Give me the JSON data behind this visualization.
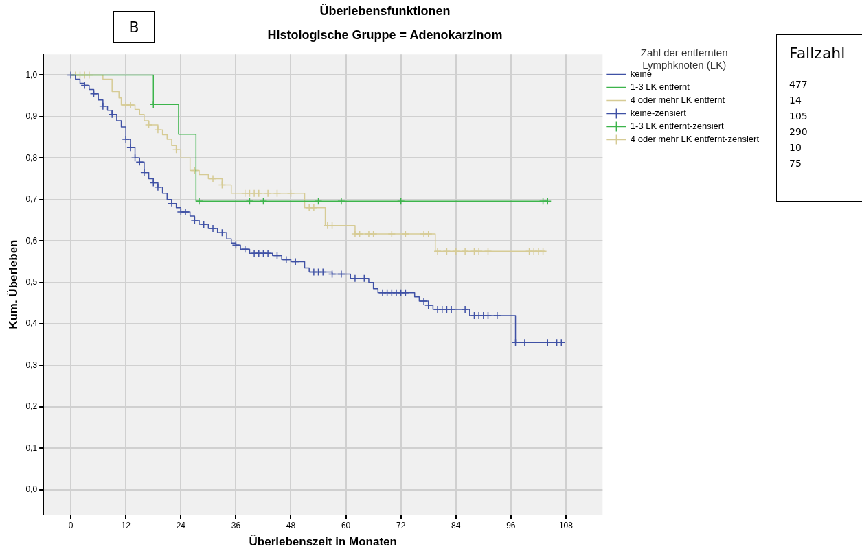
{
  "chart_data": {
    "type": "step",
    "title": "Überlebensfunktionen",
    "subtitle": "Histologische Gruppe = Adenokarzinom",
    "xlabel": "Überlebenszeit in Monaten",
    "ylabel": "Kum. Überleben",
    "legend_title": "Zahl der entfernten Lymphknoten (LK)",
    "legend": "right",
    "grid": true,
    "xlim": [
      -6,
      116
    ],
    "xticks": [
      0,
      12,
      24,
      36,
      48,
      60,
      72,
      84,
      96,
      108
    ],
    "ylim": [
      -0.06,
      1.05
    ],
    "yticks": [
      {
        "value": 0,
        "label": "0,0"
      },
      {
        "value": 0.1,
        "label": "0,1"
      },
      {
        "value": 0.2,
        "label": "0,2"
      },
      {
        "value": 0.3,
        "label": "0,3"
      },
      {
        "value": 0.4,
        "label": "0,4"
      },
      {
        "value": 0.5,
        "label": "0,5"
      },
      {
        "value": 0.6,
        "label": "0,6"
      },
      {
        "value": 0.7,
        "label": "0,7"
      },
      {
        "value": 0.8,
        "label": "0,8"
      },
      {
        "value": 0.9,
        "label": "0,9"
      },
      {
        "value": 1,
        "label": "1,0"
      }
    ],
    "annotations": [
      "B",
      "Fallzahl",
      "477",
      "14",
      "105",
      "290",
      "10",
      "75"
    ],
    "series": [
      {
        "name": "keine",
        "marker": "none",
        "color": "#3f51a5",
        "x": [
          0,
          1,
          2,
          3,
          4,
          5,
          6,
          7,
          8,
          9,
          10,
          11,
          12,
          13,
          14,
          15,
          16,
          17,
          18,
          19,
          20,
          21,
          22,
          23,
          24,
          26,
          27,
          28,
          30,
          32,
          34,
          35,
          36,
          37,
          39,
          44,
          46,
          48,
          51,
          52,
          57,
          61,
          65,
          66,
          67,
          75,
          76,
          78,
          79,
          87,
          97,
          107
        ],
        "values": [
          1,
          0.99,
          0.98,
          0.975,
          0.965,
          0.955,
          0.94,
          0.925,
          0.915,
          0.905,
          0.89,
          0.875,
          0.845,
          0.825,
          0.8,
          0.79,
          0.765,
          0.75,
          0.74,
          0.73,
          0.715,
          0.7,
          0.69,
          0.68,
          0.67,
          0.66,
          0.65,
          0.64,
          0.63,
          0.62,
          0.605,
          0.595,
          0.59,
          0.58,
          0.57,
          0.565,
          0.555,
          0.55,
          0.535,
          0.525,
          0.52,
          0.51,
          0.5,
          0.485,
          0.475,
          0.465,
          0.455,
          0.445,
          0.435,
          0.42,
          0.355,
          0.355
        ]
      },
      {
        "name": "1-3 LK entfernt",
        "marker": "none",
        "color": "#3cb44b",
        "x": [
          0,
          18,
          23.5,
          27.3,
          104
        ],
        "values": [
          1,
          0.929,
          0.857,
          0.696,
          0.696
        ]
      },
      {
        "name": "4 oder mehr LK entfernt",
        "marker": "none",
        "color": "#d6cb95",
        "x": [
          0,
          7,
          9,
          10.5,
          11,
          14,
          15,
          16,
          17,
          19,
          20,
          21,
          22,
          23,
          24,
          26,
          28,
          30,
          33,
          35,
          51,
          55.5,
          62,
          79.5,
          103.4
        ],
        "values": [
          1,
          0.99,
          0.96,
          0.945,
          0.928,
          0.917,
          0.905,
          0.89,
          0.88,
          0.868,
          0.856,
          0.845,
          0.83,
          0.82,
          0.8,
          0.77,
          0.76,
          0.75,
          0.735,
          0.715,
          0.68,
          0.637,
          0.617,
          0.575,
          0.575
        ]
      },
      {
        "name": "keine-zensiert",
        "type": "scatter",
        "marker": "cross",
        "color": "#3f51a5",
        "x": [
          0,
          3,
          5,
          7,
          9,
          12,
          13,
          14,
          15,
          16,
          18,
          19,
          22,
          24,
          25,
          27,
          29,
          31,
          33,
          36,
          38,
          40,
          41,
          42,
          43,
          45,
          47,
          49,
          53,
          54,
          55,
          57,
          59,
          62,
          64,
          68,
          69,
          70,
          71,
          72,
          73,
          77,
          78,
          80,
          81,
          82,
          83,
          86,
          88,
          89,
          90,
          91,
          93,
          97,
          99,
          104,
          106,
          107
        ],
        "values": [
          1,
          0.975,
          0.955,
          0.925,
          0.905,
          0.845,
          0.825,
          0.8,
          0.79,
          0.765,
          0.74,
          0.73,
          0.69,
          0.67,
          0.67,
          0.65,
          0.64,
          0.63,
          0.62,
          0.59,
          0.58,
          0.57,
          0.57,
          0.57,
          0.57,
          0.565,
          0.555,
          0.55,
          0.525,
          0.525,
          0.525,
          0.52,
          0.52,
          0.51,
          0.51,
          0.475,
          0.475,
          0.475,
          0.475,
          0.475,
          0.475,
          0.455,
          0.445,
          0.435,
          0.435,
          0.435,
          0.435,
          0.435,
          0.42,
          0.42,
          0.42,
          0.42,
          0.42,
          0.355,
          0.355,
          0.355,
          0.355,
          0.355
        ]
      },
      {
        "name": "1-3 LK entfernt-zensiert",
        "type": "scatter",
        "marker": "cross",
        "color": "#3cb44b",
        "x": [
          18,
          28,
          39,
          42,
          54,
          59,
          72,
          103,
          104
        ],
        "values": [
          0.929,
          0.696,
          0.696,
          0.696,
          0.696,
          0.696,
          0.696,
          0.696,
          0.696
        ]
      },
      {
        "name": "4 oder mehr LK entfernt-zensiert",
        "type": "scatter",
        "marker": "cross",
        "color": "#d6cb95",
        "x": [
          1,
          2,
          3,
          4,
          12,
          13,
          17,
          19,
          23,
          27,
          31,
          33,
          38,
          39,
          40,
          41,
          43,
          45,
          48,
          52,
          53,
          56,
          57,
          62,
          63,
          65,
          66,
          70,
          73,
          77,
          78,
          80,
          82,
          84,
          86,
          88,
          89,
          91,
          100,
          101,
          102,
          103
        ],
        "values": [
          1,
          1,
          1,
          1,
          0.928,
          0.928,
          0.88,
          0.868,
          0.82,
          0.77,
          0.75,
          0.735,
          0.715,
          0.715,
          0.715,
          0.715,
          0.715,
          0.715,
          0.715,
          0.68,
          0.68,
          0.637,
          0.637,
          0.617,
          0.617,
          0.617,
          0.617,
          0.617,
          0.617,
          0.617,
          0.617,
          0.575,
          0.575,
          0.575,
          0.575,
          0.575,
          0.575,
          0.575,
          0.575,
          0.575,
          0.575,
          0.575
        ]
      }
    ]
  }
}
